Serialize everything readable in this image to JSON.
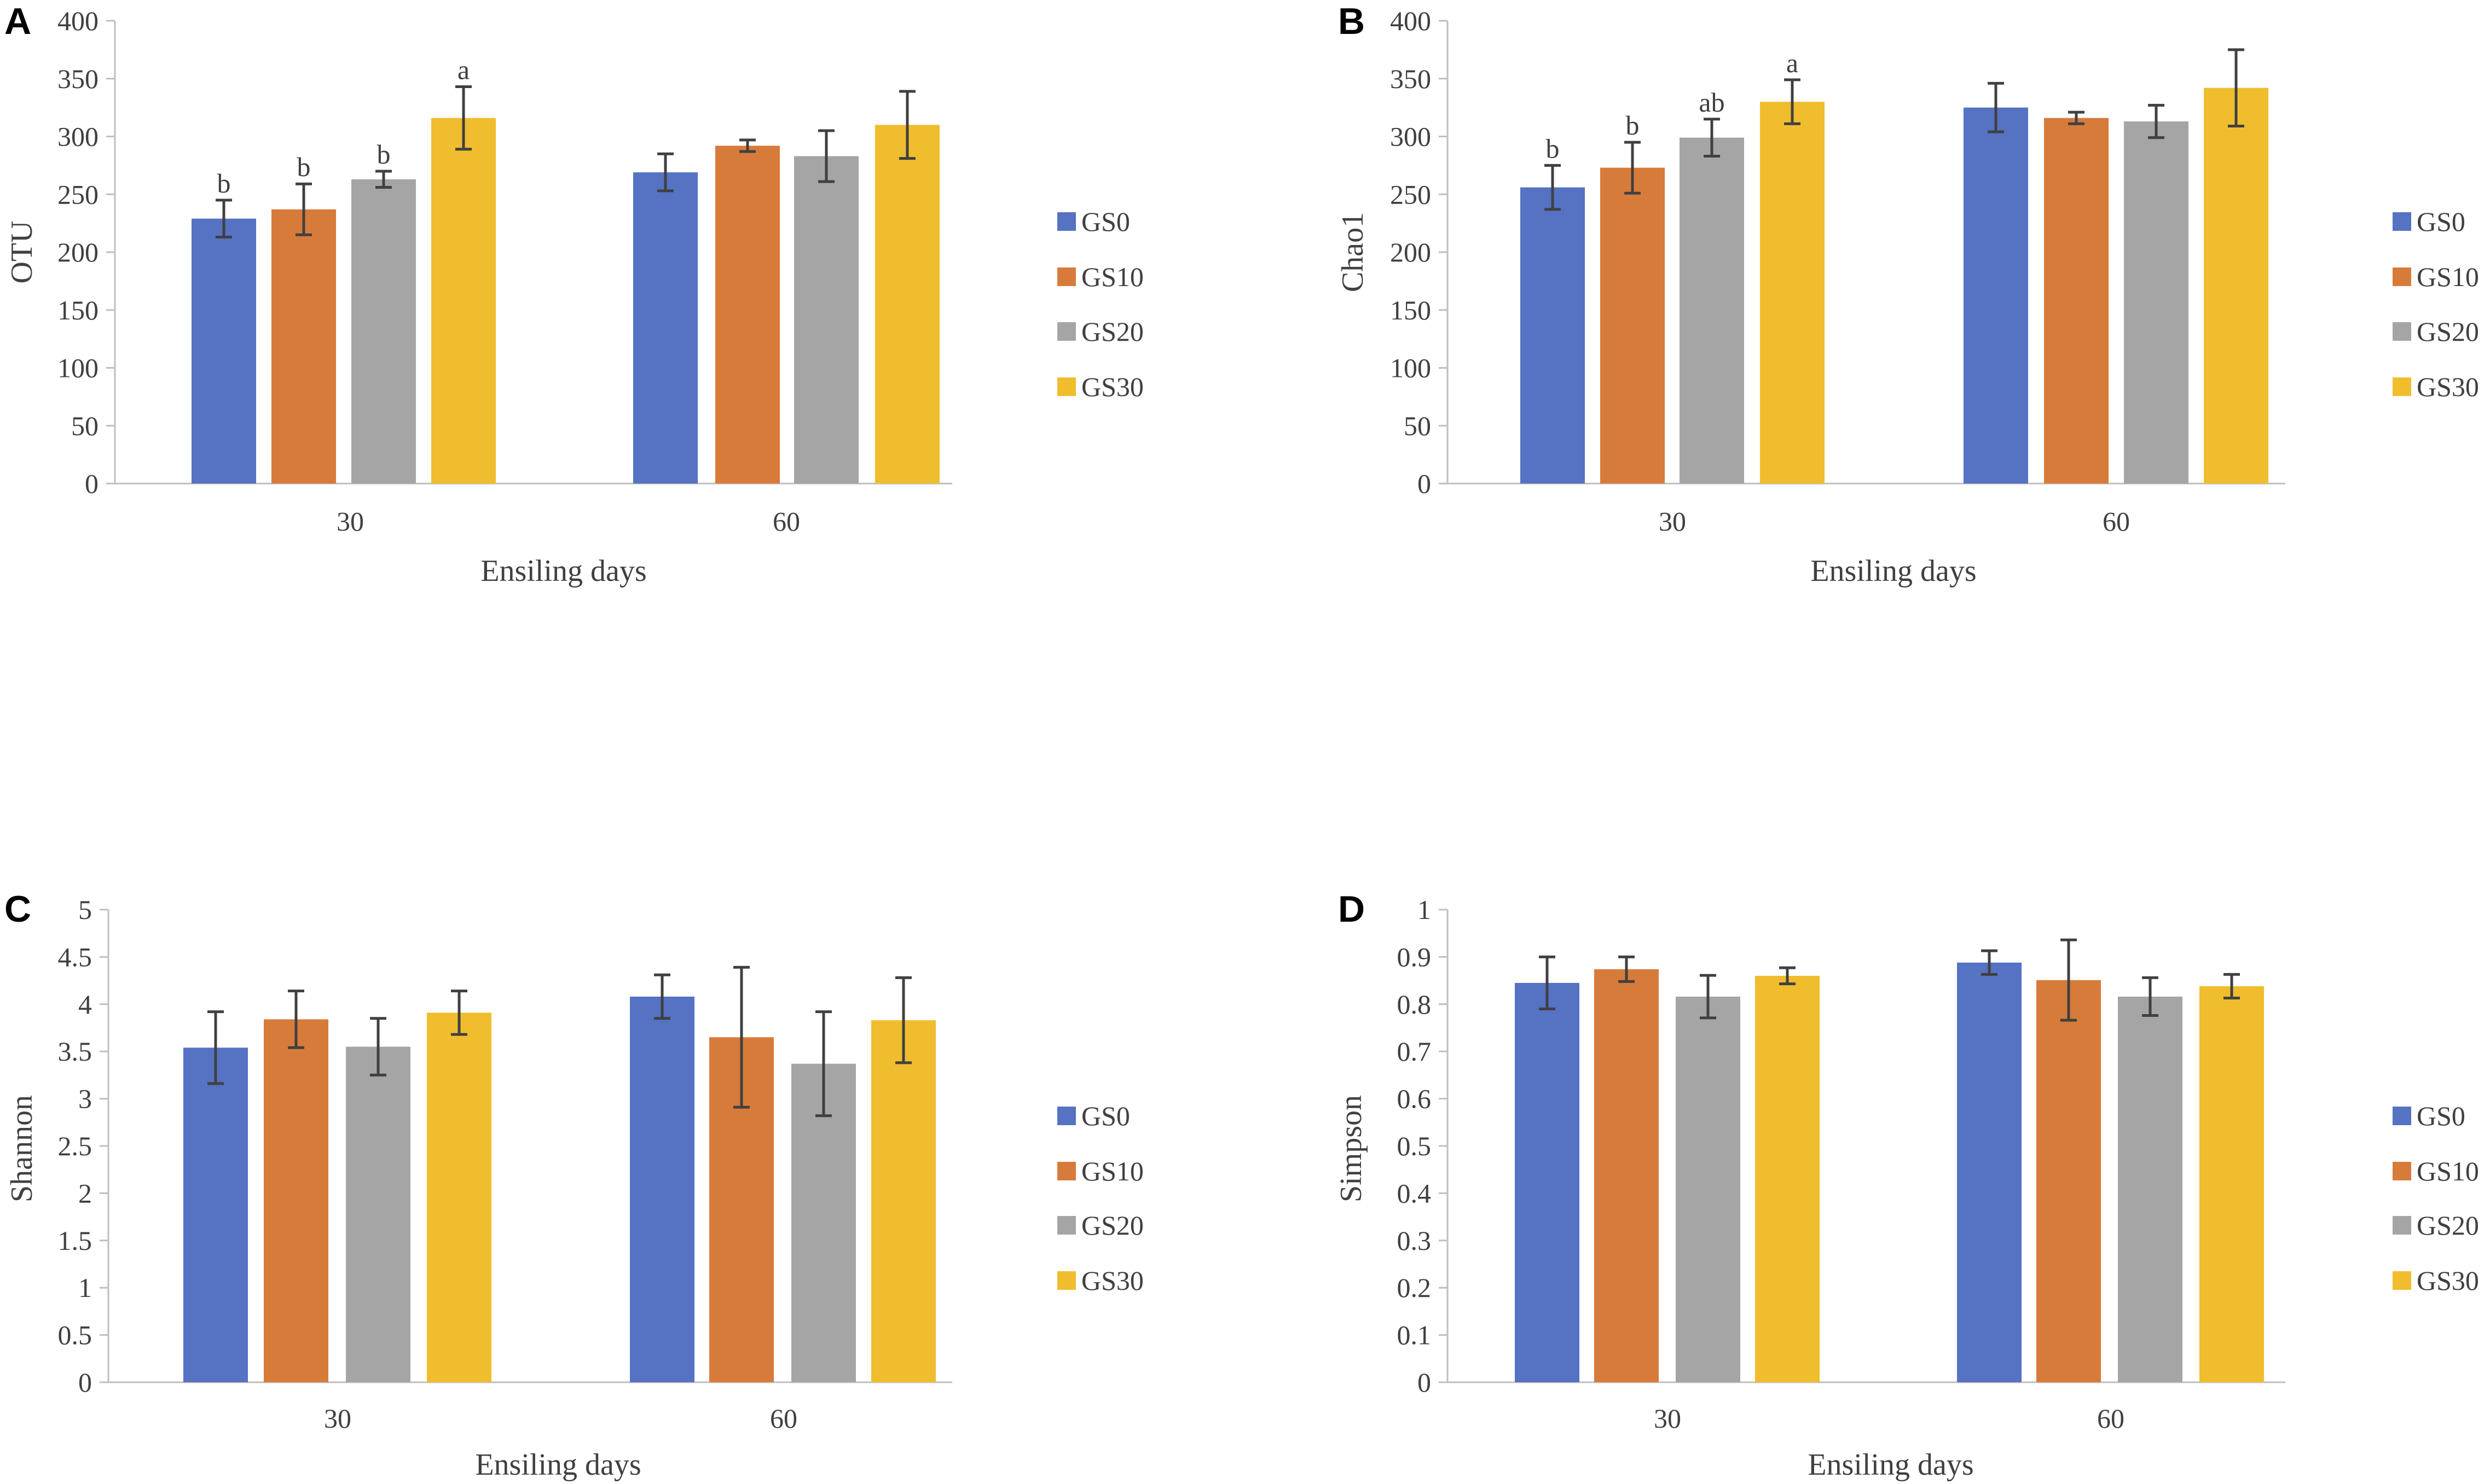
{
  "figure": {
    "series_names": [
      "GS0",
      "GS10",
      "GS20",
      "GS30"
    ],
    "colors": {
      "GS0": "#5572C3",
      "GS10": "#D77B3B",
      "GS20": "#A5A5A5",
      "GS30": "#F0BD2E",
      "axis": "#BFBFBF",
      "text": "#404040",
      "error": "#404040"
    }
  },
  "chart_data": [
    {
      "panel": "A",
      "type": "bar",
      "title": "",
      "xlabel": "Ensiling days",
      "ylabel": "OTU",
      "categories": [
        "30",
        "60"
      ],
      "ylim": [
        0,
        400
      ],
      "yticks": [
        "0",
        "50",
        "100",
        "150",
        "200",
        "250",
        "300",
        "350",
        "400"
      ],
      "grid": false,
      "legend": "right",
      "series": [
        {
          "name": "GS0",
          "values": [
            229,
            269
          ],
          "errors": [
            16,
            16
          ],
          "labels": [
            "b",
            ""
          ]
        },
        {
          "name": "GS10",
          "values": [
            237,
            292
          ],
          "errors": [
            22,
            5
          ],
          "labels": [
            "b",
            ""
          ]
        },
        {
          "name": "GS20",
          "values": [
            263,
            283
          ],
          "errors": [
            7,
            22
          ],
          "labels": [
            "b",
            ""
          ]
        },
        {
          "name": "GS30",
          "values": [
            316,
            310
          ],
          "errors": [
            27,
            29
          ],
          "labels": [
            "a",
            ""
          ]
        }
      ]
    },
    {
      "panel": "B",
      "type": "bar",
      "title": "",
      "xlabel": "Ensiling days",
      "ylabel": "Chao1",
      "categories": [
        "30",
        "60"
      ],
      "ylim": [
        0,
        400
      ],
      "yticks": [
        "0",
        "50",
        "100",
        "150",
        "200",
        "250",
        "300",
        "350",
        "400"
      ],
      "grid": false,
      "legend": "right",
      "series": [
        {
          "name": "GS0",
          "values": [
            256,
            325
          ],
          "errors": [
            19,
            21
          ],
          "labels": [
            "b",
            ""
          ]
        },
        {
          "name": "GS10",
          "values": [
            273,
            316
          ],
          "errors": [
            22,
            5
          ],
          "labels": [
            "b",
            ""
          ]
        },
        {
          "name": "GS20",
          "values": [
            299,
            313
          ],
          "errors": [
            16,
            14
          ],
          "labels": [
            "ab",
            ""
          ]
        },
        {
          "name": "GS30",
          "values": [
            330,
            342
          ],
          "errors": [
            19,
            33
          ],
          "labels": [
            "a",
            ""
          ]
        }
      ]
    },
    {
      "panel": "C",
      "type": "bar",
      "title": "",
      "xlabel": "Ensiling days",
      "ylabel": "Shannon",
      "categories": [
        "30",
        "60"
      ],
      "ylim": [
        0,
        5
      ],
      "yticks": [
        "0",
        "0.5",
        "1",
        "1.5",
        "2",
        "2.5",
        "3",
        "3.5",
        "4",
        "4.5",
        "5"
      ],
      "grid": false,
      "legend": "right",
      "series": [
        {
          "name": "GS0",
          "values": [
            3.54,
            4.08
          ],
          "errors": [
            0.38,
            0.23
          ],
          "labels": [
            "",
            ""
          ]
        },
        {
          "name": "GS10",
          "values": [
            3.84,
            3.65
          ],
          "errors": [
            0.3,
            0.74
          ],
          "labels": [
            "",
            ""
          ]
        },
        {
          "name": "GS20",
          "values": [
            3.55,
            3.37
          ],
          "errors": [
            0.3,
            0.55
          ],
          "labels": [
            "",
            ""
          ]
        },
        {
          "name": "GS30",
          "values": [
            3.91,
            3.83
          ],
          "errors": [
            0.23,
            0.45
          ],
          "labels": [
            "",
            ""
          ]
        }
      ]
    },
    {
      "panel": "D",
      "type": "bar",
      "title": "",
      "xlabel": "Ensiling days",
      "ylabel": "Simpson",
      "categories": [
        "30",
        "60"
      ],
      "ylim": [
        0,
        1
      ],
      "yticks": [
        "0",
        "0.1",
        "0.2",
        "0.3",
        "0.4",
        "0.5",
        "0.6",
        "0.7",
        "0.8",
        "0.9",
        "1"
      ],
      "grid": false,
      "legend": "right",
      "series": [
        {
          "name": "GS0",
          "values": [
            0.845,
            0.888
          ],
          "errors": [
            0.055,
            0.025
          ],
          "labels": [
            "",
            ""
          ]
        },
        {
          "name": "GS10",
          "values": [
            0.874,
            0.851
          ],
          "errors": [
            0.026,
            0.085
          ],
          "labels": [
            "",
            ""
          ]
        },
        {
          "name": "GS20",
          "values": [
            0.816,
            0.816
          ],
          "errors": [
            0.045,
            0.04
          ],
          "labels": [
            "",
            ""
          ]
        },
        {
          "name": "GS30",
          "values": [
            0.86,
            0.838
          ],
          "errors": [
            0.017,
            0.025
          ],
          "labels": [
            "",
            ""
          ]
        }
      ]
    }
  ]
}
